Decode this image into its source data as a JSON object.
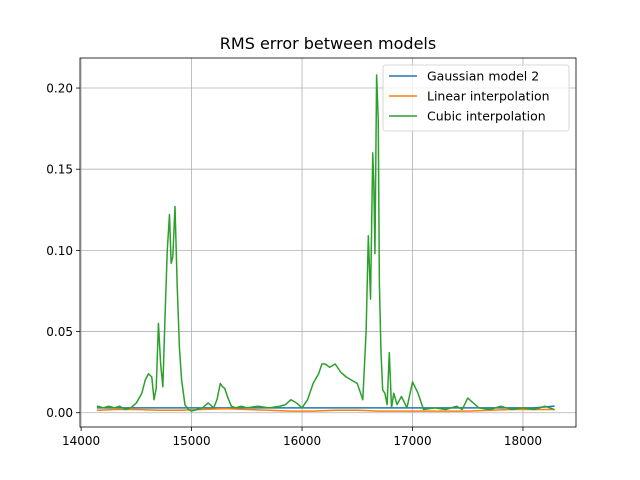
{
  "chart_data": {
    "type": "line",
    "title": "RMS error between models",
    "xlabel": "",
    "ylabel": "",
    "xlim": [
      13990,
      18480
    ],
    "ylim": [
      -0.0088,
      0.2185
    ],
    "xticks": [
      14000,
      15000,
      16000,
      17000,
      18000
    ],
    "xtick_labels": [
      "14000",
      "15000",
      "16000",
      "17000",
      "18000"
    ],
    "yticks": [
      0.0,
      0.05,
      0.1,
      0.15,
      0.2
    ],
    "ytick_labels": [
      "0.00",
      "0.05",
      "0.10",
      "0.15",
      "0.20"
    ],
    "grid": true,
    "legend_position": "top-right",
    "series": [
      {
        "name": "Gaussian model 2",
        "color": "#1f77b4",
        "x": [
          14150,
          14300,
          14500,
          14700,
          14900,
          15100,
          15300,
          15500,
          15700,
          15900,
          16100,
          16300,
          16500,
          16700,
          16900,
          17100,
          17300,
          17500,
          17700,
          17900,
          18100,
          18280
        ],
        "y": [
          0.003,
          0.003,
          0.003,
          0.003,
          0.003,
          0.003,
          0.003,
          0.003,
          0.003,
          0.003,
          0.003,
          0.003,
          0.003,
          0.003,
          0.003,
          0.003,
          0.003,
          0.003,
          0.003,
          0.003,
          0.003,
          0.004
        ]
      },
      {
        "name": "Linear interpolation",
        "color": "#ff7f0e",
        "x": [
          14150,
          14300,
          14500,
          14700,
          14900,
          15100,
          15300,
          15500,
          15700,
          15900,
          16100,
          16300,
          16500,
          16700,
          16900,
          17100,
          17300,
          17500,
          17700,
          17900,
          18100,
          18280
        ],
        "y": [
          0.0015,
          0.002,
          0.002,
          0.0015,
          0.0015,
          0.002,
          0.0025,
          0.002,
          0.0015,
          0.001,
          0.001,
          0.0015,
          0.0015,
          0.001,
          0.001,
          0.001,
          0.001,
          0.001,
          0.0015,
          0.002,
          0.002,
          0.002
        ]
      },
      {
        "name": "Cubic interpolation",
        "color": "#2ca02c",
        "x": [
          14150,
          14200,
          14250,
          14300,
          14350,
          14400,
          14450,
          14500,
          14550,
          14580,
          14610,
          14640,
          14660,
          14680,
          14700,
          14720,
          14740,
          14760,
          14780,
          14800,
          14815,
          14830,
          14850,
          14870,
          14890,
          14910,
          14940,
          14970,
          15000,
          15050,
          15100,
          15150,
          15200,
          15230,
          15260,
          15280,
          15300,
          15330,
          15360,
          15400,
          15450,
          15500,
          15600,
          15700,
          15800,
          15850,
          15900,
          15950,
          16000,
          16050,
          16100,
          16150,
          16180,
          16210,
          16250,
          16300,
          16350,
          16400,
          16450,
          16500,
          16550,
          16580,
          16600,
          16620,
          16640,
          16650,
          16660,
          16675,
          16690,
          16700,
          16715,
          16730,
          16750,
          16770,
          16790,
          16810,
          16830,
          16860,
          16900,
          16950,
          17000,
          17050,
          17100,
          17200,
          17300,
          17400,
          17450,
          17500,
          17550,
          17600,
          17700,
          17800,
          17900,
          18000,
          18100,
          18200,
          18280
        ],
        "y": [
          0.004,
          0.003,
          0.004,
          0.003,
          0.004,
          0.002,
          0.003,
          0.006,
          0.012,
          0.02,
          0.024,
          0.022,
          0.008,
          0.015,
          0.055,
          0.03,
          0.016,
          0.06,
          0.1,
          0.122,
          0.092,
          0.096,
          0.127,
          0.078,
          0.04,
          0.02,
          0.005,
          0.002,
          0.001,
          0.002,
          0.003,
          0.006,
          0.003,
          0.008,
          0.018,
          0.016,
          0.015,
          0.009,
          0.004,
          0.003,
          0.004,
          0.003,
          0.004,
          0.003,
          0.004,
          0.005,
          0.008,
          0.006,
          0.003,
          0.008,
          0.018,
          0.024,
          0.03,
          0.03,
          0.028,
          0.03,
          0.025,
          0.022,
          0.02,
          0.018,
          0.008,
          0.05,
          0.109,
          0.07,
          0.16,
          0.14,
          0.098,
          0.208,
          0.18,
          0.08,
          0.037,
          0.014,
          0.012,
          0.005,
          0.037,
          0.003,
          0.012,
          0.005,
          0.01,
          0.003,
          0.019,
          0.012,
          0.002,
          0.003,
          0.002,
          0.004,
          0.002,
          0.009,
          0.006,
          0.003,
          0.002,
          0.004,
          0.002,
          0.003,
          0.002,
          0.004,
          0.002
        ]
      }
    ]
  }
}
